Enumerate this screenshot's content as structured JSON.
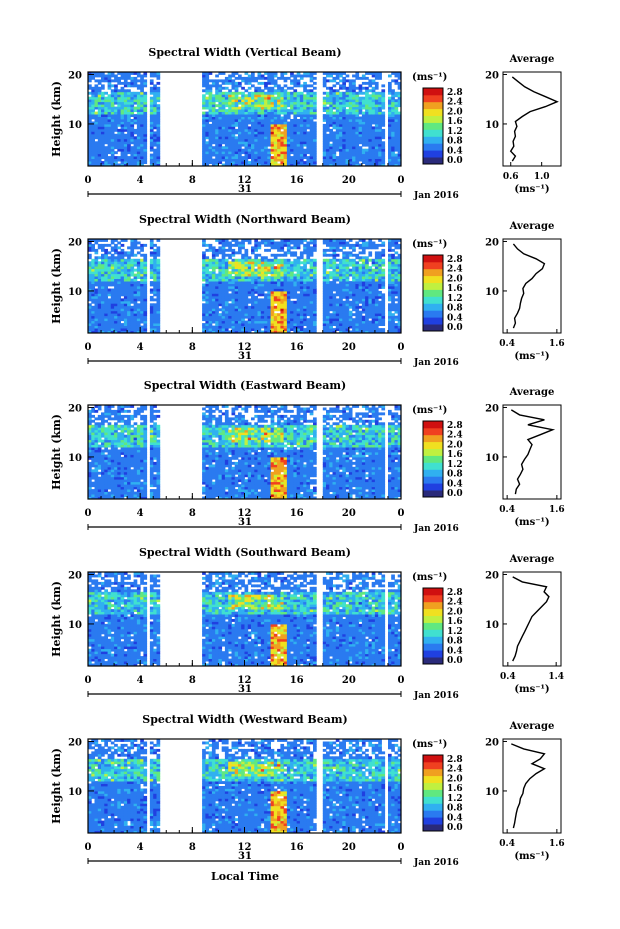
{
  "figure": {
    "xlabel_bottom": "Local Time",
    "date_label": "Jan 2016",
    "day_label": "31",
    "colorbar_unit": "(ms⁻¹)",
    "colorbar_ticks": [
      "0.0",
      "0.4",
      "0.8",
      "1.2",
      "1.6",
      "2.0",
      "2.4",
      "2.8"
    ],
    "avg_title": "Average",
    "avg_xlabel": "(ms⁻¹)",
    "y_axis_label": "Height (km)",
    "colormap": [
      "#2a2a7a",
      "#2040e0",
      "#2a7af0",
      "#30b0f0",
      "#40e0d0",
      "#60e880",
      "#c0f040",
      "#f0e020",
      "#f0a020",
      "#f04020",
      "#d01010"
    ]
  },
  "chart_data": [
    {
      "type": "heatmap",
      "title": "Spectral Width (Vertical Beam)",
      "x_ticks": [
        "0",
        "4",
        "8",
        "12",
        "16",
        "20",
        "0"
      ],
      "y_ticks": [
        "20",
        "10"
      ],
      "xlim": [
        0,
        24
      ],
      "ylim": [
        1.5,
        20.5
      ],
      "colorbar_range": [
        0.0,
        2.8
      ],
      "gaps_hours": [
        [
          4.6,
          4.85
        ],
        [
          5.5,
          8.7
        ],
        [
          17.6,
          17.95
        ],
        [
          21.9,
          22.1
        ],
        [
          22.8,
          23.1
        ]
      ],
      "average": {
        "title": "Average",
        "x_ticks": [
          "0.6",
          "1.0"
        ],
        "xlim": [
          0.5,
          1.25
        ],
        "heights_km": [
          2.5,
          3.5,
          4.5,
          5.5,
          6.5,
          7.5,
          8.5,
          9.5,
          10.5,
          11.5,
          12.5,
          13.5,
          14.5,
          15.5,
          16.5,
          17.5,
          18.5,
          19.5
        ],
        "values": [
          0.62,
          0.66,
          0.6,
          0.64,
          0.63,
          0.66,
          0.65,
          0.68,
          0.66,
          0.75,
          0.85,
          1.05,
          1.2,
          1.05,
          0.9,
          0.78,
          0.7,
          0.62
        ]
      }
    },
    {
      "type": "heatmap",
      "title": "Spectral Width (Northward Beam)",
      "x_ticks": [
        "0",
        "4",
        "8",
        "12",
        "16",
        "20",
        "0"
      ],
      "y_ticks": [
        "20",
        "10"
      ],
      "xlim": [
        0,
        24
      ],
      "ylim": [
        1.5,
        20.5
      ],
      "colorbar_range": [
        0.0,
        2.8
      ],
      "gaps_hours": [
        [
          4.6,
          4.85
        ],
        [
          5.5,
          8.7
        ],
        [
          17.6,
          17.95
        ],
        [
          21.9,
          22.1
        ],
        [
          22.8,
          23.1
        ]
      ],
      "average": {
        "title": "Average",
        "x_ticks": [
          "0.4",
          "1.6"
        ],
        "xlim": [
          0.3,
          1.7
        ],
        "heights_km": [
          2.5,
          3.5,
          4.5,
          5.5,
          6.5,
          7.5,
          8.5,
          9.5,
          10.5,
          11.5,
          12.5,
          13.5,
          14.5,
          15.5,
          16.5,
          17.5,
          18.5,
          19.5
        ],
        "values": [
          0.55,
          0.6,
          0.58,
          0.65,
          0.7,
          0.72,
          0.75,
          0.8,
          0.78,
          0.85,
          1.0,
          1.1,
          1.25,
          1.3,
          1.1,
          0.8,
          0.65,
          0.55
        ]
      }
    },
    {
      "type": "heatmap",
      "title": "Spectral Width (Eastward Beam)",
      "x_ticks": [
        "0",
        "4",
        "8",
        "12",
        "16",
        "20",
        "0"
      ],
      "y_ticks": [
        "20",
        "10"
      ],
      "xlim": [
        0,
        24
      ],
      "ylim": [
        1.5,
        20.5
      ],
      "colorbar_range": [
        0.0,
        2.8
      ],
      "gaps_hours": [
        [
          4.6,
          4.85
        ],
        [
          5.5,
          8.7
        ],
        [
          17.6,
          17.95
        ],
        [
          21.9,
          22.1
        ],
        [
          22.8,
          23.1
        ]
      ],
      "average": {
        "title": "Average",
        "x_ticks": [
          "0.4",
          "1.6"
        ],
        "xlim": [
          0.3,
          1.7
        ],
        "heights_km": [
          2.5,
          3.5,
          4.5,
          5.5,
          6.5,
          7.5,
          8.5,
          9.5,
          10.5,
          11.5,
          12.5,
          13.5,
          14.5,
          15.5,
          16.5,
          17.5,
          18.5,
          19.5
        ],
        "values": [
          0.6,
          0.62,
          0.7,
          0.65,
          0.72,
          0.78,
          0.75,
          0.82,
          0.9,
          0.95,
          1.0,
          0.9,
          1.2,
          1.5,
          0.9,
          1.3,
          0.7,
          0.5
        ]
      }
    },
    {
      "type": "heatmap",
      "title": "Spectral Width (Southward Beam)",
      "x_ticks": [
        "0",
        "4",
        "8",
        "12",
        "16",
        "20",
        "0"
      ],
      "y_ticks": [
        "20",
        "10"
      ],
      "xlim": [
        0,
        24
      ],
      "ylim": [
        1.5,
        20.5
      ],
      "colorbar_range": [
        0.0,
        2.8
      ],
      "gaps_hours": [
        [
          4.6,
          4.85
        ],
        [
          5.5,
          8.7
        ],
        [
          17.6,
          17.95
        ],
        [
          21.9,
          22.1
        ],
        [
          22.8,
          23.1
        ]
      ],
      "average": {
        "title": "Average",
        "x_ticks": [
          "0.4",
          "1.4"
        ],
        "xlim": [
          0.3,
          1.5
        ],
        "heights_km": [
          2.5,
          3.5,
          4.5,
          5.5,
          6.5,
          7.5,
          8.5,
          9.5,
          10.5,
          11.5,
          12.5,
          13.5,
          14.5,
          15.5,
          16.5,
          17.5,
          18.5,
          19.5
        ],
        "values": [
          0.5,
          0.55,
          0.58,
          0.6,
          0.65,
          0.7,
          0.75,
          0.8,
          0.85,
          0.9,
          1.0,
          1.1,
          1.2,
          1.25,
          1.15,
          1.2,
          0.7,
          0.5
        ]
      }
    },
    {
      "type": "heatmap",
      "title": "Spectral Width (Westward Beam)",
      "x_ticks": [
        "0",
        "4",
        "8",
        "12",
        "16",
        "20",
        "0"
      ],
      "y_ticks": [
        "20",
        "10"
      ],
      "xlim": [
        0,
        24
      ],
      "ylim": [
        1.5,
        20.5
      ],
      "colorbar_range": [
        0.0,
        2.8
      ],
      "gaps_hours": [
        [
          4.6,
          4.85
        ],
        [
          5.5,
          8.7
        ],
        [
          17.6,
          17.95
        ],
        [
          21.9,
          22.1
        ],
        [
          22.8,
          23.1
        ]
      ],
      "average": {
        "title": "Average",
        "x_ticks": [
          "0.4",
          "1.6"
        ],
        "xlim": [
          0.3,
          1.7
        ],
        "heights_km": [
          2.5,
          3.5,
          4.5,
          5.5,
          6.5,
          7.5,
          8.5,
          9.5,
          10.5,
          11.5,
          12.5,
          13.5,
          14.5,
          15.5,
          16.5,
          17.5,
          18.5,
          19.5
        ],
        "values": [
          0.55,
          0.58,
          0.6,
          0.62,
          0.65,
          0.7,
          0.72,
          0.78,
          0.8,
          0.85,
          0.95,
          1.1,
          1.3,
          1.0,
          1.2,
          1.3,
          0.8,
          0.5
        ]
      }
    }
  ]
}
